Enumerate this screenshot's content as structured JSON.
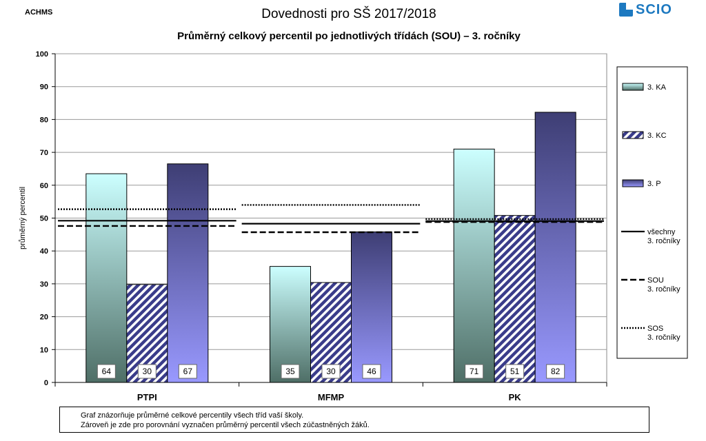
{
  "header": {
    "corner_label": "ACHMS",
    "title": "Dovednosti pro SŠ 2017/2018",
    "subtitle": "Průměrný celkový percentil po jednotlivých třídách (SOU) – 3. ročníky",
    "logo_text": "SCIO"
  },
  "note": {
    "line1": "Graf znázorňuje průměrné celkové percentily všech tříd vaší školy.",
    "line2": "Zároveň je zde pro porovnání vyznačen průměrný percentil všech zúčastněných žáků."
  },
  "colors": {
    "ka_top": "#ccffff",
    "ka_bottom": "#4e6e66",
    "kc_stripe": "#3a3c8a",
    "p_top": "#3e3e74",
    "p_bottom": "#9999ff",
    "grid": "#999999"
  },
  "chart_data": {
    "type": "bar",
    "title": "Průměrný celkový percentil po jednotlivých třídách (SOU) – 3. ročníky",
    "ylabel": "průměrný percentil",
    "xlabel": "",
    "ylim": [
      0,
      100
    ],
    "yticks": [
      0,
      10,
      20,
      30,
      40,
      50,
      60,
      70,
      80,
      90,
      100
    ],
    "grid": true,
    "legend_position": "right",
    "categories": [
      "PTPI",
      "MFMP",
      "PK"
    ],
    "series": [
      {
        "name": "3. KA",
        "values": [
          63.5,
          35.3,
          71.0
        ],
        "labels": [
          "64",
          "35",
          "71"
        ]
      },
      {
        "name": "3. KC",
        "values": [
          29.8,
          30.4,
          50.8
        ],
        "labels": [
          "30",
          "30",
          "51"
        ]
      },
      {
        "name": "3. P",
        "values": [
          66.5,
          45.8,
          82.2
        ],
        "labels": [
          "67",
          "46",
          "82"
        ]
      }
    ],
    "reference_lines": [
      {
        "name": "všechny 3. ročníky",
        "style": "solid",
        "values": [
          49.2,
          48.3,
          49.1
        ]
      },
      {
        "name": "SOU 3. ročníky",
        "style": "dashed",
        "values": [
          47.6,
          45.7,
          48.8
        ]
      },
      {
        "name": "SOS 3. ročníky",
        "style": "dotted",
        "values": [
          52.7,
          54.0,
          49.7
        ]
      }
    ]
  }
}
